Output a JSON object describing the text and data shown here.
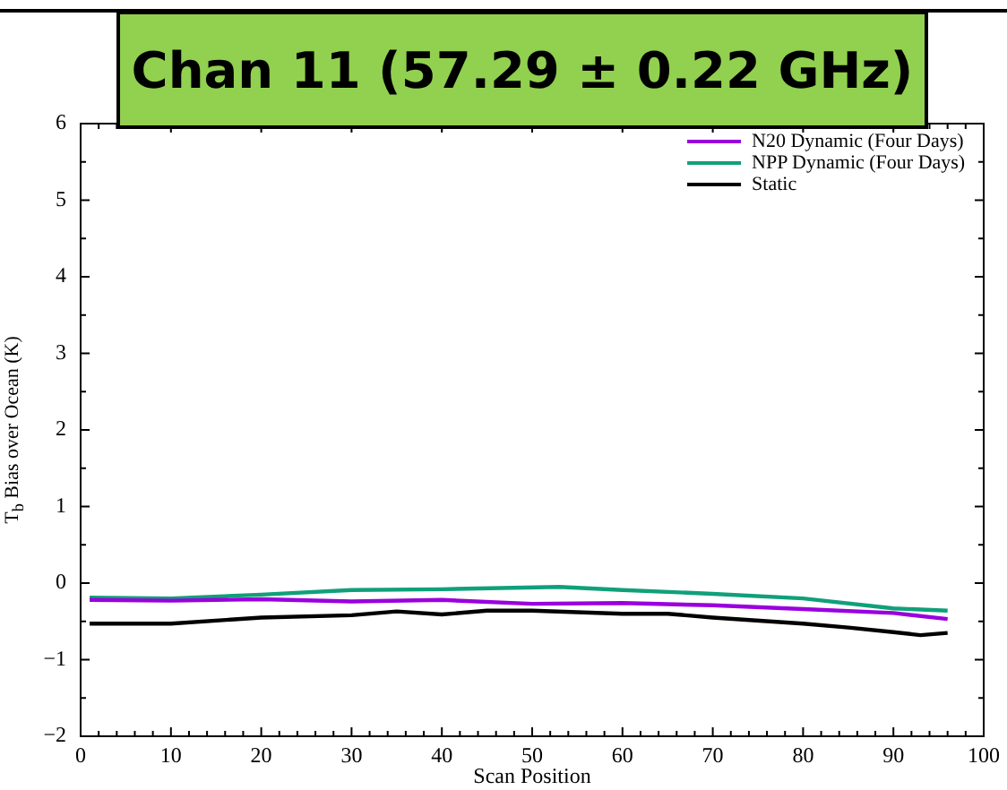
{
  "chart_data": {
    "type": "line",
    "title": "Chan 11 (57.29 ± 0.22 GHz)",
    "xlabel": "Scan Position",
    "ylabel": "T$_{b}$ Bias over Ocean (K)",
    "xlim": [
      0,
      100
    ],
    "xticks": [
      0,
      10,
      20,
      30,
      40,
      50,
      60,
      70,
      80,
      90,
      100
    ],
    "ylim": [
      -2,
      6
    ],
    "yticks": [
      -2,
      -1,
      0,
      1,
      2,
      3,
      4,
      5,
      6
    ],
    "legend": "top right",
    "marker": "none",
    "line_style": "solid",
    "series": [
      {
        "name": "N20 Dynamic (Four Days)",
        "color": "#9900dd",
        "x": [
          1,
          10,
          20,
          30,
          40,
          50,
          60,
          70,
          80,
          90,
          96
        ],
        "values": [
          -0.22,
          -0.23,
          -0.21,
          -0.24,
          -0.22,
          -0.27,
          -0.26,
          -0.29,
          -0.34,
          -0.39,
          -0.47
        ]
      },
      {
        "name": "NPP Dynamic (Four Days)",
        "color": "#10a07a",
        "x": [
          1,
          10,
          20,
          30,
          40,
          53,
          60,
          70,
          80,
          90,
          96
        ],
        "values": [
          -0.19,
          -0.2,
          -0.15,
          -0.09,
          -0.08,
          -0.05,
          -0.09,
          -0.14,
          -0.2,
          -0.33,
          -0.36
        ]
      },
      {
        "name": "Static",
        "color": "#000000",
        "x": [
          1,
          10,
          20,
          30,
          35,
          40,
          45,
          50,
          60,
          65,
          70,
          80,
          85,
          90,
          93,
          96
        ],
        "values": [
          -0.53,
          -0.53,
          -0.45,
          -0.42,
          -0.37,
          -0.41,
          -0.36,
          -0.36,
          -0.4,
          -0.4,
          -0.45,
          -0.53,
          -0.58,
          -0.64,
          -0.68,
          -0.65
        ]
      }
    ]
  }
}
